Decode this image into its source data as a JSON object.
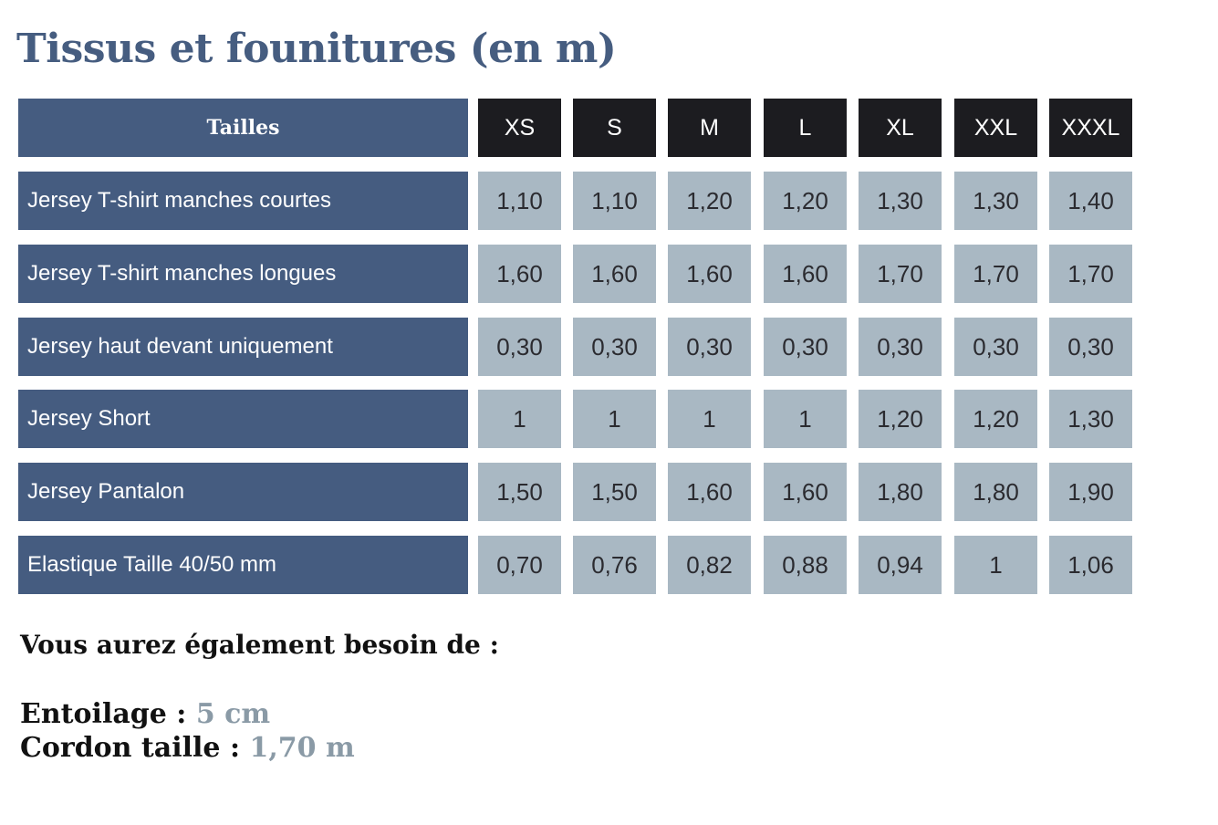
{
  "title": "Tissus et founitures (en m)",
  "table": {
    "header_label": "Tailles",
    "sizes": [
      "XS",
      "S",
      "M",
      "L",
      "XL",
      "XXL",
      "XXXL"
    ],
    "rows": [
      {
        "label": "Jersey  T-shirt manches courtes",
        "values": [
          "1,10",
          "1,10",
          "1,20",
          "1,20",
          "1,30",
          "1,30",
          "1,40"
        ]
      },
      {
        "label": "Jersey T-shirt manches longues",
        "values": [
          "1,60",
          "1,60",
          "1,60",
          "1,60",
          "1,70",
          "1,70",
          "1,70"
        ]
      },
      {
        "label": "Jersey haut devant uniquement",
        "values": [
          "0,30",
          "0,30",
          "0,30",
          "0,30",
          "0,30",
          "0,30",
          "0,30"
        ]
      },
      {
        "label": "Jersey Short",
        "values": [
          "1",
          "1",
          "1",
          "1",
          "1,20",
          "1,20",
          "1,30"
        ]
      },
      {
        "label": "Jersey Pantalon",
        "values": [
          "1,50",
          "1,50",
          "1,60",
          "1,60",
          "1,80",
          "1,80",
          "1,90"
        ]
      },
      {
        "label": "Elastique Taille 40/50 mm",
        "values": [
          "0,70",
          "0,76",
          "0,82",
          "0,88",
          "0,94",
          "1",
          "1,06"
        ]
      }
    ]
  },
  "footer": {
    "heading": "Vous aurez également besoin de :",
    "items": [
      {
        "label": "Entoilage : ",
        "value": "5 cm"
      },
      {
        "label": "Cordon taille : ",
        "value": "1,70 m"
      }
    ]
  },
  "colors": {
    "title": "#465d80",
    "label_bg": "#455c80",
    "size_bg": "#1c1c20",
    "value_bg": "#a9b8c3",
    "accent": "#8a9aa6"
  }
}
